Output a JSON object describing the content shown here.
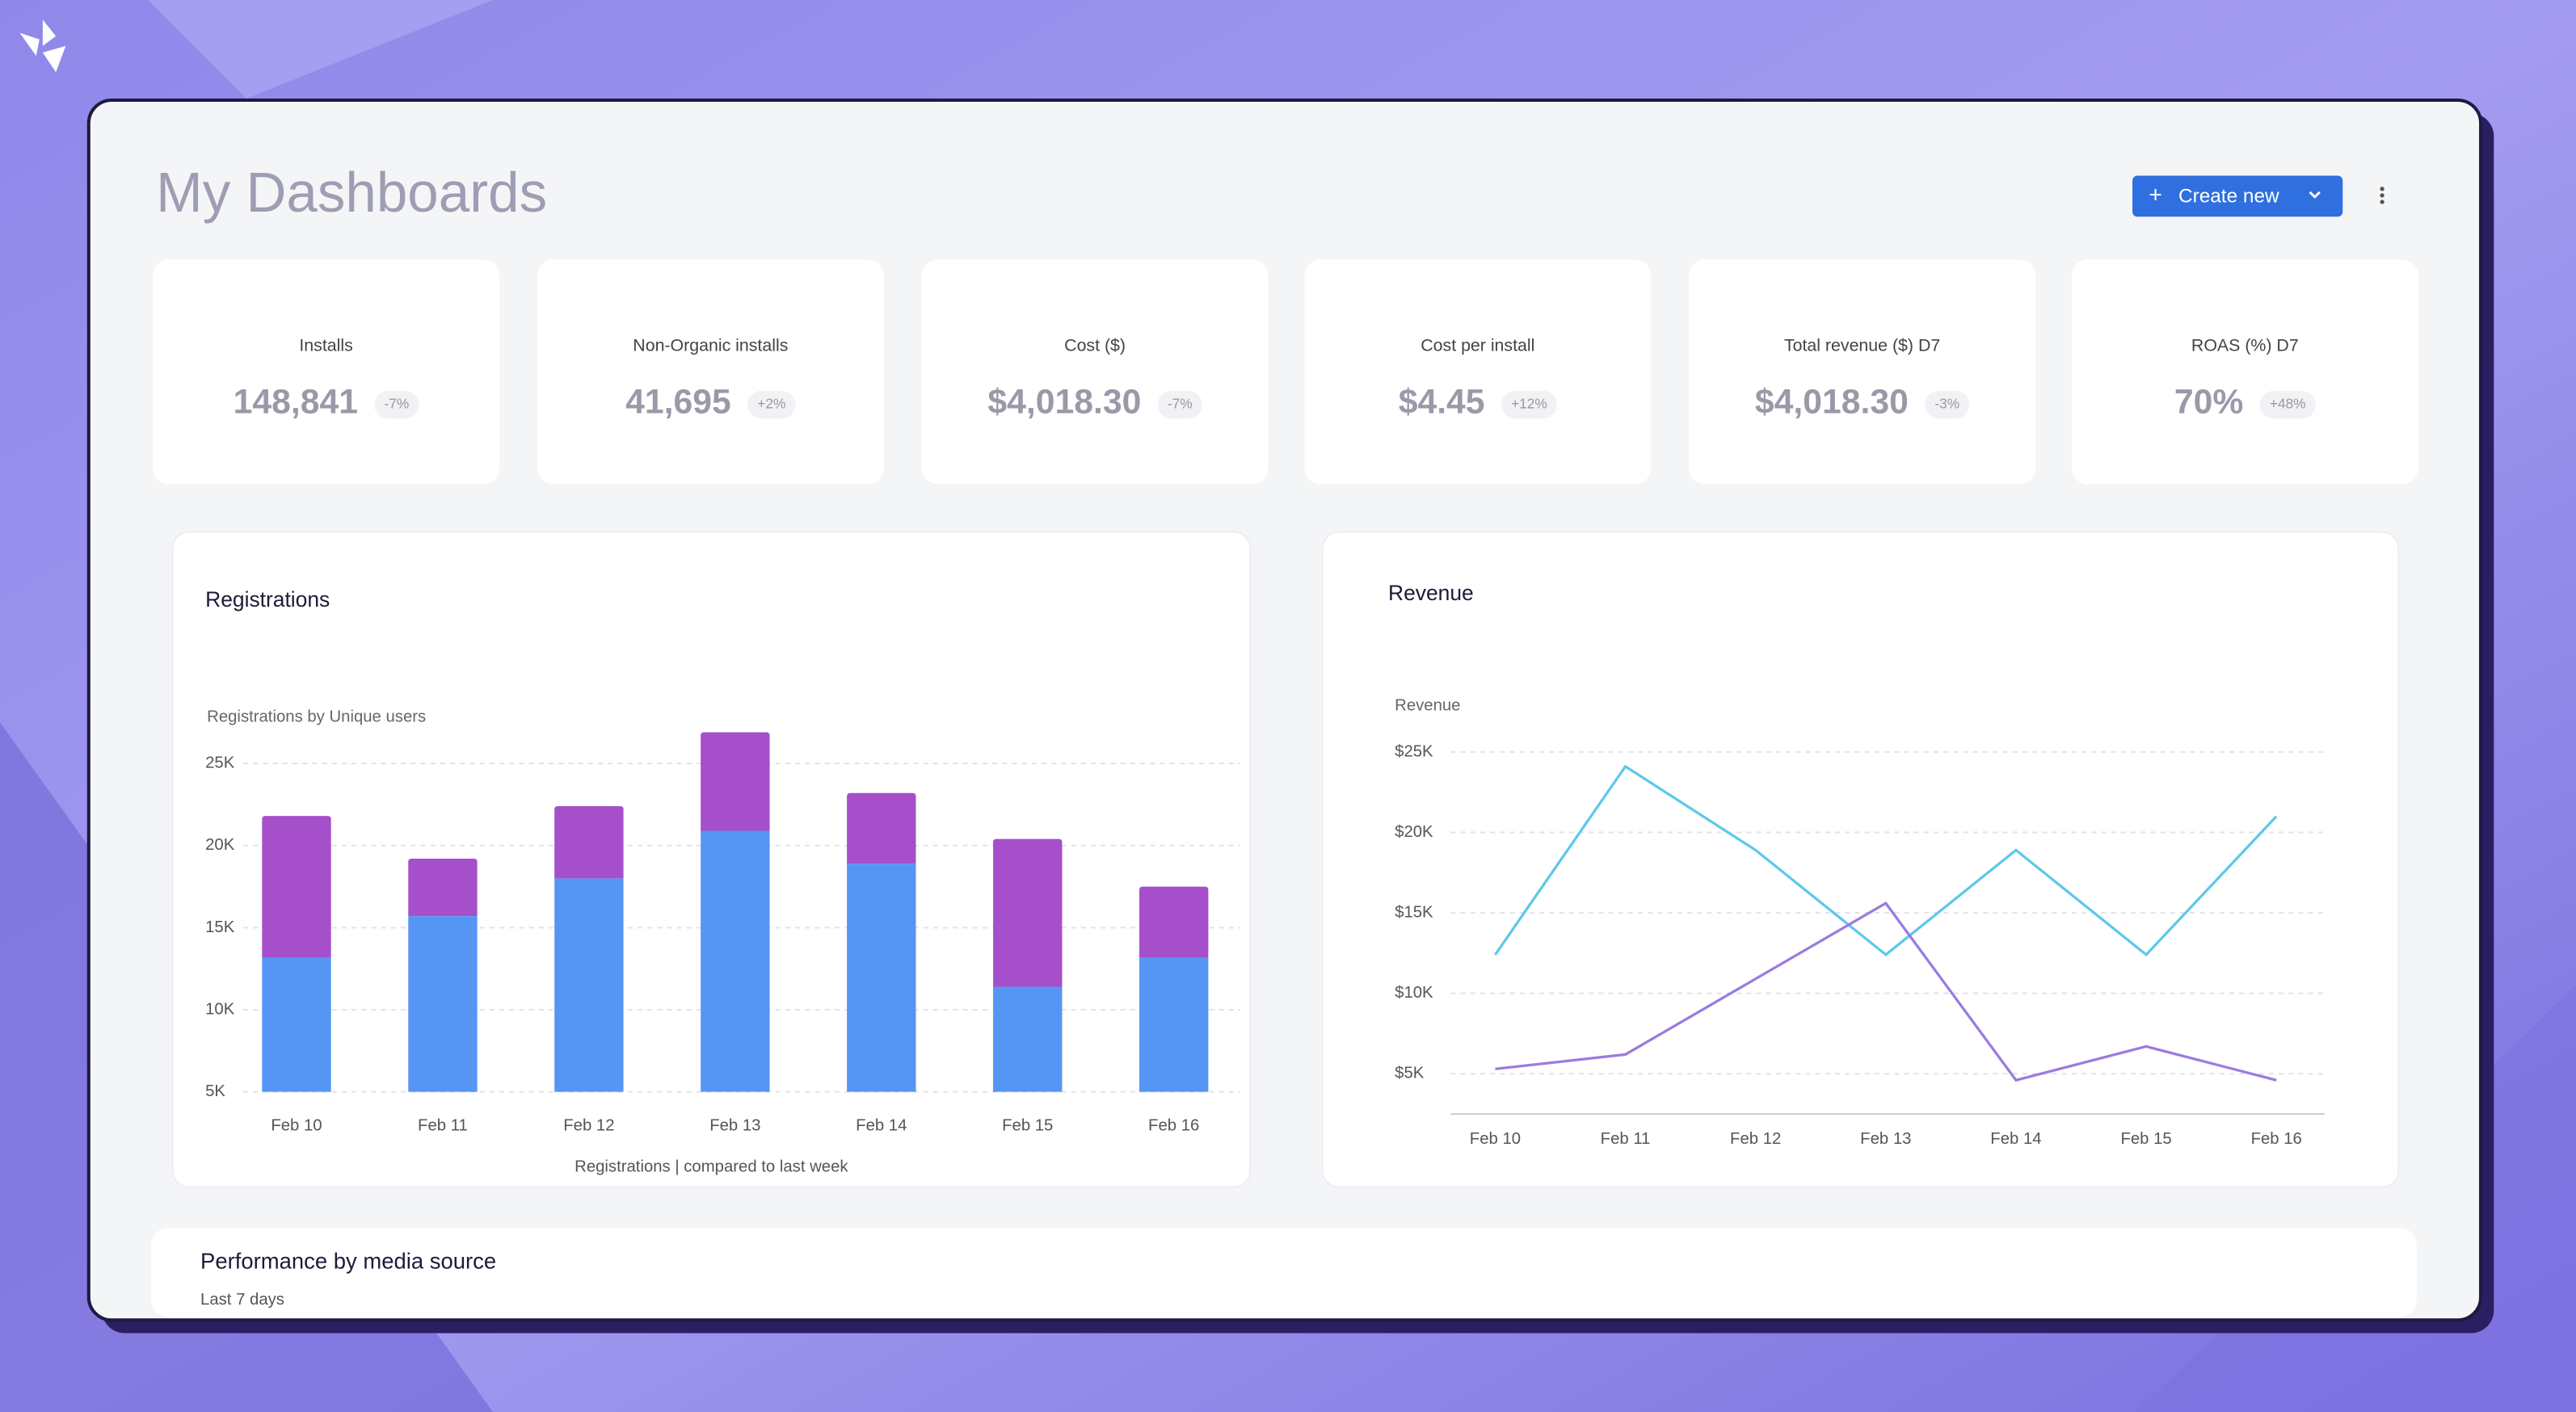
{
  "header": {
    "title": "My Dashboards",
    "button": "Create new"
  },
  "kpis": [
    {
      "label": "Installs",
      "value": "148,841",
      "change": "-7%"
    },
    {
      "label": "Non-Organic installs",
      "value": "41,695",
      "change": "+2%"
    },
    {
      "label": "Cost ($)",
      "value": "$4,018.30",
      "change": "-7%"
    },
    {
      "label": "Cost per install",
      "value": "$4.45",
      "change": "+12%"
    },
    {
      "label": "Total revenue ($) D7",
      "value": "$4,018.30",
      "change": "-3%"
    },
    {
      "label": "ROAS (%) D7",
      "value": "70%",
      "change": "+48%"
    }
  ],
  "registrations": {
    "type": "bar",
    "title": "Registrations",
    "subtitle": "Registrations by Unique users",
    "caption": "Registrations | compared to last week",
    "categories": [
      "Feb 10",
      "Feb 11",
      "Feb 12",
      "Feb 13",
      "Feb 14",
      "Feb 15",
      "Feb 16"
    ],
    "series": [
      {
        "color": "#5596f4",
        "values": [
          8200,
          10700,
          13000,
          15900,
          13900,
          6400,
          8200
        ]
      },
      {
        "color": "#a64fcb",
        "values": [
          8600,
          3500,
          4400,
          6000,
          4300,
          9000,
          4300
        ]
      }
    ],
    "ylim": [
      5000,
      25000
    ],
    "yticks": [
      {
        "value": 5000,
        "label": "5K"
      },
      {
        "value": 10000,
        "label": "10K"
      },
      {
        "value": 15000,
        "label": "15K"
      },
      {
        "value": 20000,
        "label": "20K"
      },
      {
        "value": 25000,
        "label": "25K"
      }
    ],
    "grid": true
  },
  "revenue": {
    "type": "line",
    "title": "Revenue",
    "axis_label": "Revenue",
    "categories": [
      "Feb 10",
      "Feb 11",
      "Feb 12",
      "Feb 13",
      "Feb 14",
      "Feb 15",
      "Feb 16"
    ],
    "series": [
      {
        "color": "#5ec8ea",
        "values": [
          12400,
          24100,
          18900,
          12400,
          18900,
          12400,
          21000
        ]
      },
      {
        "color": "#9a7be0",
        "values": [
          5300,
          6200,
          10900,
          15600,
          4600,
          6700,
          4600
        ]
      }
    ],
    "ylim": [
      2500,
      25000
    ],
    "yticks": [
      {
        "value": 5000,
        "label": "$5K"
      },
      {
        "value": 10000,
        "label": "$10K"
      },
      {
        "value": 15000,
        "label": "$15K"
      },
      {
        "value": 20000,
        "label": "$20K"
      },
      {
        "value": 25000,
        "label": "$25K"
      }
    ],
    "grid": true
  },
  "performance": {
    "title": "Performance by media source",
    "subtitle": "Last 7 days"
  }
}
